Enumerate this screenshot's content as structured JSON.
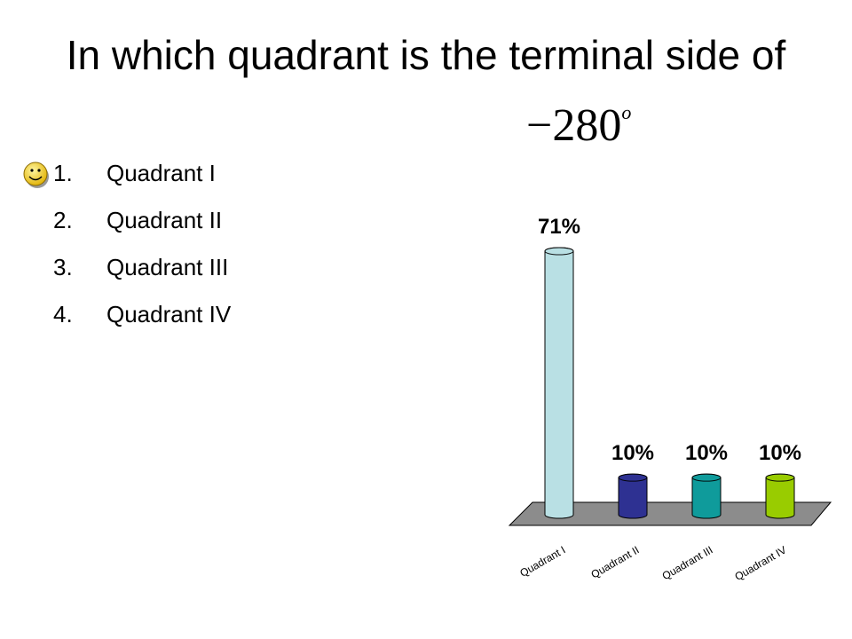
{
  "question": {
    "title": "In which quadrant is the terminal side of",
    "angle": "−280",
    "degree_mark": "o"
  },
  "options": [
    {
      "number": "1.",
      "label": "Quadrant I"
    },
    {
      "number": "2.",
      "label": "Quadrant II"
    },
    {
      "number": "3.",
      "label": "Quadrant III"
    },
    {
      "number": "4.",
      "label": "Quadrant IV"
    }
  ],
  "chart_data": {
    "type": "bar",
    "categories": [
      "Quadrant I",
      "Quadrant II",
      "Quadrant III",
      "Quadrant IV"
    ],
    "values": [
      71,
      10,
      10,
      10
    ],
    "value_labels": [
      "71%",
      "10%",
      "10%",
      "10%"
    ],
    "colors": [
      "#b9e0e4",
      "#2e3192",
      "#0f9b9b",
      "#99cc00"
    ]
  }
}
